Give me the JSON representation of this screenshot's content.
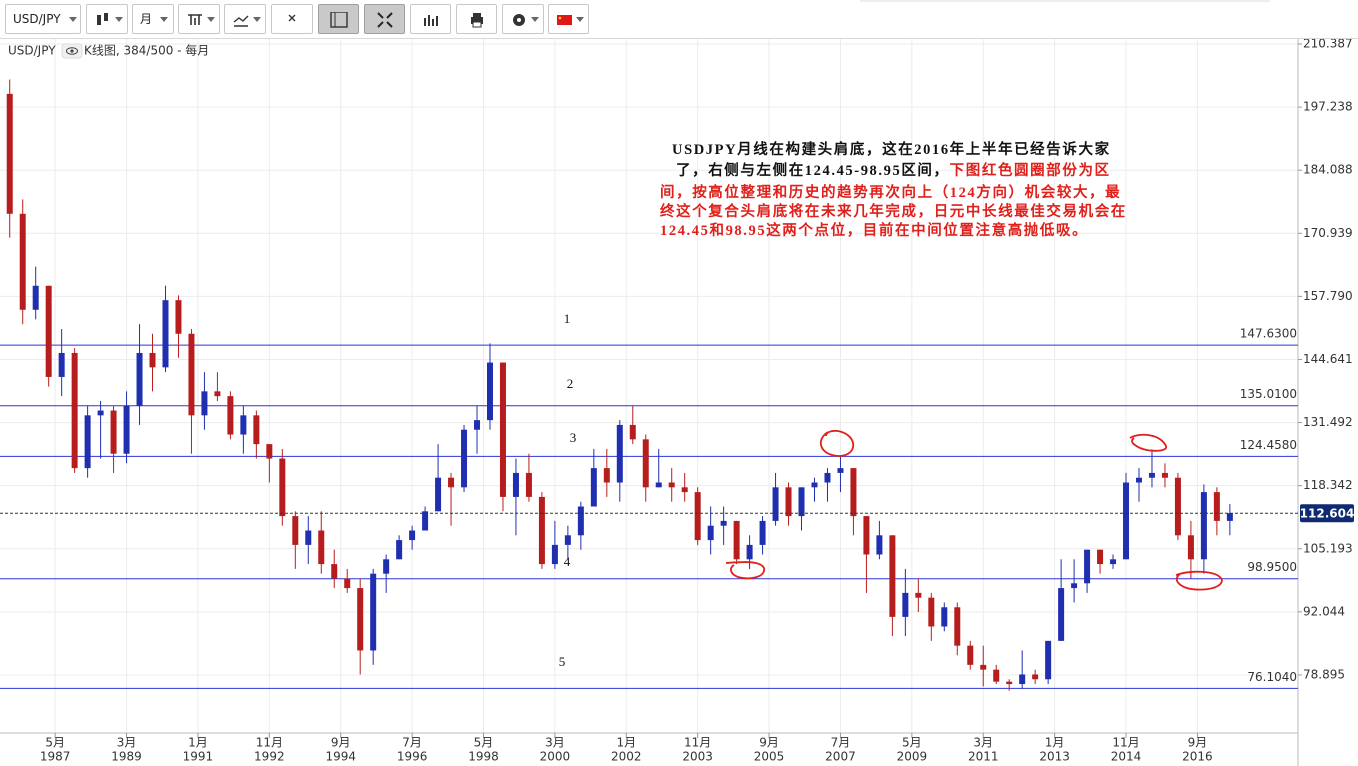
{
  "toolbar": {
    "symbol": "USD/JPY",
    "period": "月"
  },
  "chart_data": {
    "type": "candlestick",
    "symbol": "USD/JPY",
    "subtitle": "K线图, 384/500 - 每月",
    "up_color": "#1f2fb0",
    "down_color": "#b81d1d",
    "x": [
      "1986-01",
      "1986-05",
      "1986-09",
      "1987-01",
      "1987-05",
      "1987-09",
      "1988-01",
      "1988-05",
      "1988-09",
      "1989-01",
      "1989-05",
      "1989-09",
      "1990-01",
      "1990-05",
      "1990-09",
      "1991-01",
      "1991-05",
      "1991-09",
      "1992-01",
      "1992-05",
      "1992-09",
      "1993-01",
      "1993-05",
      "1993-09",
      "1994-01",
      "1994-05",
      "1994-09",
      "1995-01",
      "1995-05",
      "1995-09",
      "1996-01",
      "1996-05",
      "1996-09",
      "1997-01",
      "1997-05",
      "1997-09",
      "1998-01",
      "1998-05",
      "1998-09",
      "1999-01",
      "1999-05",
      "1999-09",
      "2000-01",
      "2000-05",
      "2000-09",
      "2001-01",
      "2001-05",
      "2001-09",
      "2002-01",
      "2002-05",
      "2002-09",
      "2003-01",
      "2003-05",
      "2003-09",
      "2004-01",
      "2004-05",
      "2004-09",
      "2005-01",
      "2005-05",
      "2005-09",
      "2006-01",
      "2006-05",
      "2006-09",
      "2007-01",
      "2007-05",
      "2007-09",
      "2008-01",
      "2008-05",
      "2008-09",
      "2009-01",
      "2009-05",
      "2009-09",
      "2010-01",
      "2010-05",
      "2010-09",
      "2011-01",
      "2011-05",
      "2011-09",
      "2012-01",
      "2012-05",
      "2012-09",
      "2013-01",
      "2013-05",
      "2013-09",
      "2014-01",
      "2014-05",
      "2014-09",
      "2015-01",
      "2015-05",
      "2015-09",
      "2016-01",
      "2016-05",
      "2016-09",
      "2017-01",
      "2017-05"
    ],
    "open": [
      200,
      175,
      155,
      160,
      141,
      146,
      122,
      133,
      134,
      125,
      135,
      146,
      143,
      157,
      150,
      133,
      138,
      137,
      129,
      133,
      127,
      124,
      112,
      106,
      109,
      102,
      99,
      97,
      84,
      100,
      103,
      107,
      109,
      113,
      120,
      118,
      130,
      132,
      144,
      116,
      121,
      116,
      102,
      106,
      108,
      114,
      122,
      119,
      131,
      128,
      118,
      119,
      118,
      117,
      107,
      110,
      111,
      103,
      106,
      111,
      118,
      112,
      118,
      119,
      121,
      122,
      112,
      104,
      108,
      91,
      96,
      95,
      89,
      93,
      85,
      81,
      80,
      77.5,
      77,
      79,
      78,
      86,
      97,
      98,
      105,
      102,
      103,
      119,
      120,
      121,
      120,
      108,
      103,
      117,
      111
    ],
    "high": [
      203,
      178,
      164,
      160,
      151,
      147,
      135,
      136,
      135,
      138,
      152,
      150,
      160,
      158,
      151,
      142,
      142,
      138,
      135,
      134,
      127,
      126,
      113,
      112,
      113,
      105,
      101,
      99,
      101,
      104,
      108,
      110,
      114,
      127,
      121,
      131,
      135,
      148,
      144,
      124,
      125,
      117,
      111,
      110,
      115,
      126,
      126,
      132,
      135,
      129,
      126,
      122,
      121,
      118,
      114,
      114,
      111,
      108,
      112,
      121,
      119,
      118,
      120,
      122,
      124.5,
      122,
      112,
      111,
      108,
      101,
      99,
      96,
      94,
      94,
      86,
      85,
      81,
      78,
      84,
      80,
      86,
      103,
      103,
      105,
      105,
      104,
      121,
      122,
      125.9,
      123,
      121,
      111,
      118.6,
      118,
      114.5
    ],
    "low": [
      170,
      152,
      153,
      139,
      137,
      121,
      120,
      124,
      121,
      123,
      131,
      138,
      142,
      145,
      125,
      130,
      136,
      128,
      125,
      124,
      119,
      110,
      101,
      102,
      100,
      97,
      96,
      79,
      81,
      96,
      103,
      105,
      109,
      113,
      110,
      117,
      125,
      130,
      113,
      108,
      115,
      101,
      101,
      103,
      105,
      114,
      116,
      115,
      127,
      115,
      118,
      115,
      115,
      106,
      104,
      106,
      102,
      101,
      104,
      110,
      110,
      109,
      115,
      115,
      117,
      108,
      96,
      103,
      87,
      87,
      92,
      86,
      88,
      83,
      80,
      76.5,
      77,
      75.6,
      76,
      77,
      77,
      86,
      94,
      96,
      100,
      101,
      103,
      115,
      118,
      118,
      107,
      99,
      100,
      108,
      108
    ],
    "close": [
      175,
      155,
      160,
      141,
      146,
      122,
      133,
      134,
      125,
      135,
      146,
      143,
      157,
      150,
      133,
      138,
      137,
      129,
      133,
      127,
      124,
      112,
      106,
      109,
      102,
      99,
      97,
      84,
      100,
      103,
      107,
      109,
      113,
      120,
      118,
      130,
      132,
      144,
      116,
      121,
      116,
      102,
      106,
      108,
      114,
      122,
      119,
      131,
      128,
      118,
      119,
      118,
      117,
      107,
      110,
      111,
      103,
      106,
      111,
      118,
      112,
      118,
      119,
      121,
      122,
      112,
      104,
      108,
      91,
      96,
      95,
      89,
      93,
      85,
      81,
      80,
      77.5,
      77,
      79,
      78,
      86,
      97,
      98,
      105,
      102,
      103,
      119,
      120,
      121,
      120,
      108,
      103,
      117,
      111,
      112.604
    ],
    "xlim": [
      "1985-12",
      "2019-04"
    ],
    "xticks": [
      {
        "value": "1987-05",
        "label": "5月",
        "year": "1987"
      },
      {
        "value": "1989-03",
        "label": "3月",
        "year": "1989"
      },
      {
        "value": "1991-01",
        "label": "1月",
        "year": "1991"
      },
      {
        "value": "1992-11",
        "label": "11月",
        "year": "1992"
      },
      {
        "value": "1994-09",
        "label": "9月",
        "year": "1994"
      },
      {
        "value": "1996-07",
        "label": "7月",
        "year": "1996"
      },
      {
        "value": "1998-05",
        "label": "5月",
        "year": "1998"
      },
      {
        "value": "2000-03",
        "label": "3月",
        "year": "2000"
      },
      {
        "value": "2002-01",
        "label": "1月",
        "year": "2002"
      },
      {
        "value": "2003-11",
        "label": "11月",
        "year": "2003"
      },
      {
        "value": "2005-09",
        "label": "9月",
        "year": "2005"
      },
      {
        "value": "2007-07",
        "label": "7月",
        "year": "2007"
      },
      {
        "value": "2009-05",
        "label": "5月",
        "year": "2009"
      },
      {
        "value": "2011-03",
        "label": "3月",
        "year": "2011"
      },
      {
        "value": "2013-01",
        "label": "1月",
        "year": "2013"
      },
      {
        "value": "2014-11",
        "label": "11月",
        "year": "2014"
      },
      {
        "value": "2016-09",
        "label": "9月",
        "year": "2016"
      }
    ],
    "ylim": [
      66.8,
      211.22
    ],
    "yticks": [
      210.387,
      197.238,
      184.088,
      170.939,
      {
        "value": 157.79,
        "label": "157.790"
      },
      144.641,
      131.492,
      118.342,
      105.193,
      92.044,
      78.895
    ],
    "grid": true,
    "hlines": [
      {
        "value": 147.63,
        "label": "147.6300"
      },
      {
        "value": 135.01,
        "label": "135.0100"
      },
      {
        "value": 124.458,
        "label": "124.4580"
      },
      {
        "value": 98.95,
        "label": "98.9500"
      },
      {
        "value": 76.104,
        "label": "76.1040"
      }
    ],
    "hline_color": "#2b35d8",
    "last_price": 112.604,
    "markers": [
      "1",
      "2",
      "3",
      "4",
      "5"
    ],
    "annotation_lines": [
      [
        {
          "text": "USDJPY月线在构建头肩底，这在2016年上半年已经告诉大家",
          "color": "#111111"
        }
      ],
      [
        {
          "text": "了，右侧与左侧在124.45-98.95区间，",
          "color": "#111111"
        },
        {
          "text": "下图红色圆圈部份为区",
          "color": "#e0201a"
        }
      ],
      [
        {
          "text": "间，按高位整理和历史的趋势再次向上（124方向）机会较大，最",
          "color": "#e0201a"
        }
      ],
      [
        {
          "text": "终这个复合头肩底将在未来几年完成，日元中长线最佳交易机会在",
          "color": "#e0201a"
        }
      ],
      [
        {
          "text": "124.45和98.95这两个点位，目前在中间位置注意高抛低吸。",
          "color": "#e0201a"
        }
      ]
    ]
  }
}
